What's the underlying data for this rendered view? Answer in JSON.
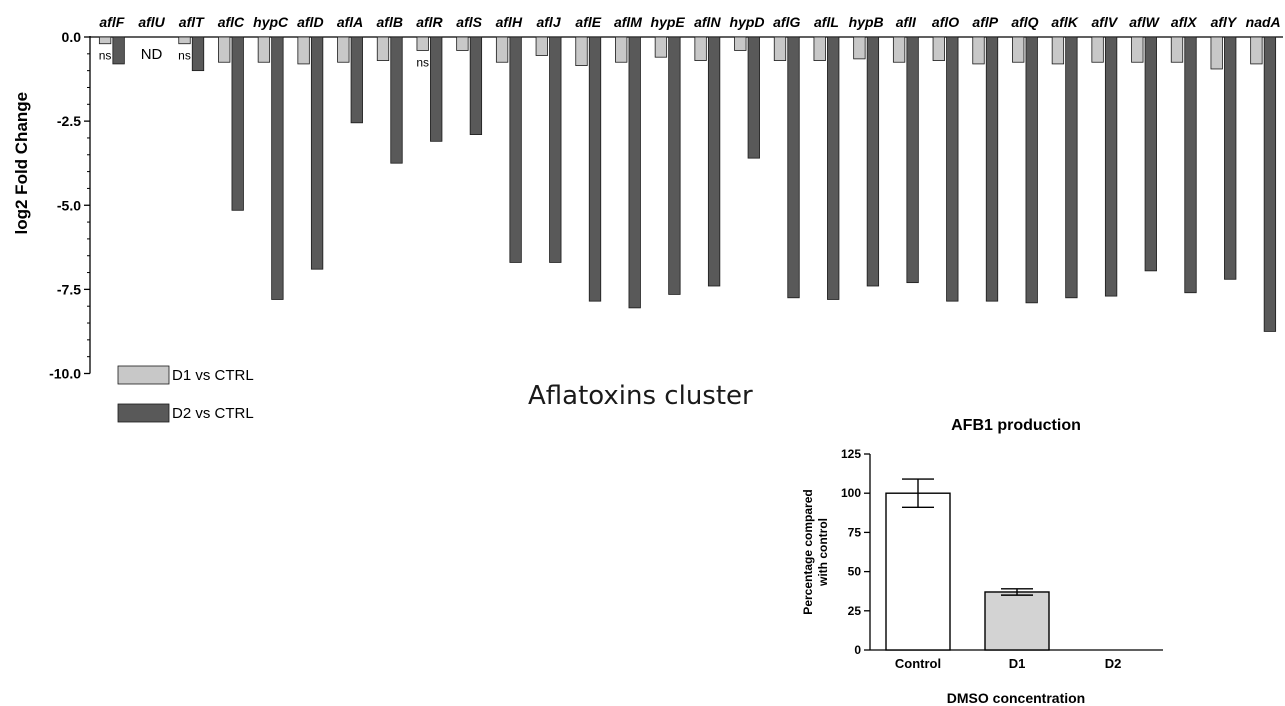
{
  "chart_data": [
    {
      "type": "bar",
      "xlabel": "",
      "ylabel": "log2 Fold Change",
      "ylim": [
        -10,
        0
      ],
      "yticks": [
        "0.0",
        "-2.5",
        "-5.0",
        "-7.5",
        "-10.0"
      ],
      "ytick_values": [
        0,
        -2.5,
        -5,
        -7.5,
        -10
      ],
      "categories": [
        "aflF",
        "aflU",
        "aflT",
        "aflC",
        "hypC",
        "aflD",
        "aflA",
        "aflB",
        "aflR",
        "aflS",
        "aflH",
        "aflJ",
        "aflE",
        "aflM",
        "hypE",
        "aflN",
        "hypD",
        "aflG",
        "aflL",
        "hypB",
        "aflI",
        "aflO",
        "aflP",
        "aflQ",
        "aflK",
        "aflV",
        "aflW",
        "aflX",
        "aflY",
        "nadA"
      ],
      "series": [
        {
          "name": "D1 vs CTRL",
          "color": "#c8c8c8",
          "values": [
            -0.2,
            null,
            -0.2,
            -0.75,
            -0.75,
            -0.8,
            -0.75,
            -0.7,
            -0.4,
            -0.4,
            -0.75,
            -0.55,
            -0.85,
            -0.75,
            -0.6,
            -0.7,
            -0.4,
            -0.7,
            -0.7,
            -0.65,
            -0.75,
            -0.7,
            -0.8,
            -0.75,
            -0.8,
            -0.75,
            -0.75,
            -0.75,
            -0.95,
            -0.8
          ]
        },
        {
          "name": "D2 vs CTRL",
          "color": "#595959",
          "values": [
            -0.8,
            null,
            -1.0,
            -5.15,
            -7.8,
            -6.9,
            -2.55,
            -3.75,
            -3.1,
            -2.9,
            -6.7,
            -6.7,
            -7.85,
            -8.05,
            -7.65,
            -7.4,
            -3.6,
            -7.75,
            -7.8,
            -7.4,
            -7.3,
            -7.85,
            -7.85,
            -7.9,
            -7.75,
            -7.7,
            -6.95,
            -7.6,
            -7.2,
            -8.75
          ]
        }
      ],
      "annotations": [
        {
          "category": "aflF",
          "text": "ns"
        },
        {
          "category": "aflU",
          "text": "ND"
        },
        {
          "category": "aflT",
          "text": "ns"
        },
        {
          "category": "aflR",
          "text": "ns"
        }
      ],
      "legend": [
        "D1 vs CTRL",
        "D2 vs CTRL"
      ],
      "legend_position": "bottom-left",
      "caption": "Aflatoxins cluster"
    },
    {
      "type": "bar",
      "title": "AFB1 production",
      "xlabel": "DMSO concentration",
      "ylabel": "Percentage compared with control",
      "ylabel_lines": [
        "Percentage compared",
        "with control"
      ],
      "ylim": [
        0,
        125
      ],
      "yticks": [
        "0",
        "25",
        "50",
        "75",
        "100",
        "125"
      ],
      "ytick_values": [
        0,
        25,
        50,
        75,
        100,
        125
      ],
      "categories": [
        "Control",
        "D1",
        "D2"
      ],
      "values": [
        100,
        37,
        0
      ],
      "errors": [
        9,
        2,
        0
      ],
      "colors": [
        "#ffffff",
        "#d3d3d3",
        "#ffffff"
      ]
    }
  ]
}
